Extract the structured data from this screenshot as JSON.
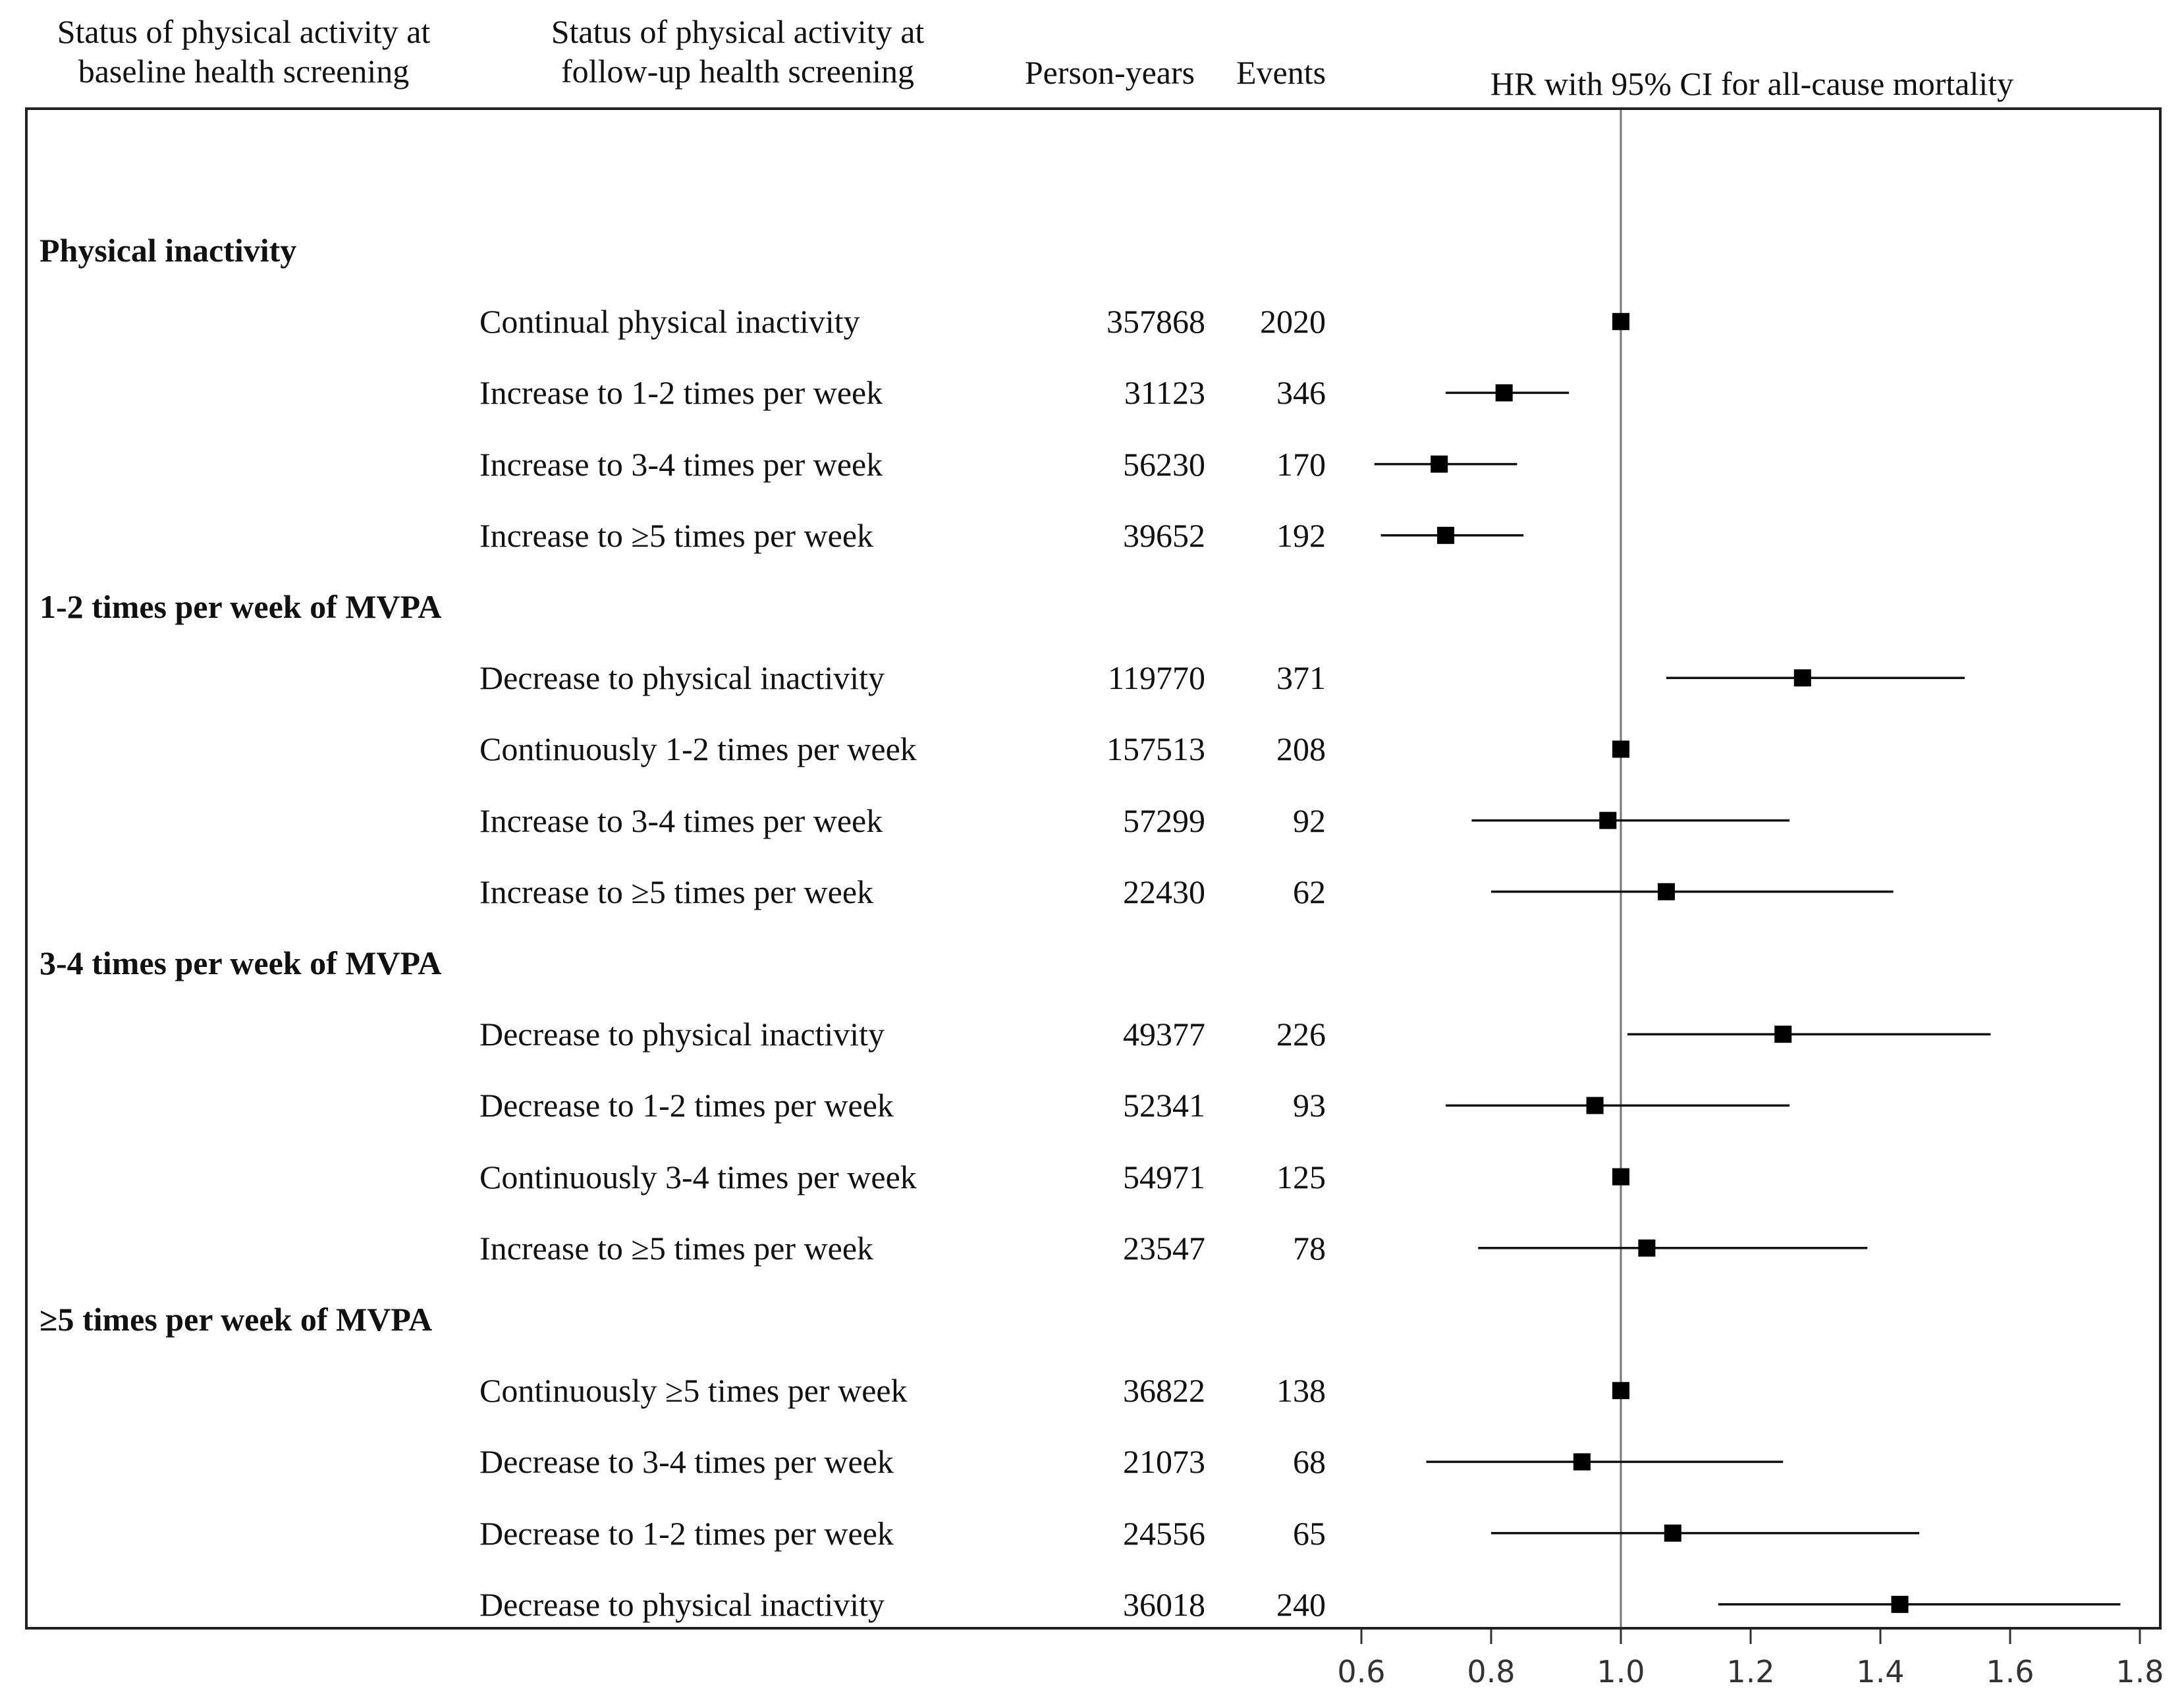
{
  "headers": {
    "baseline_line1": "Status of physical activity at",
    "baseline_line2": "baseline health screening",
    "followup_line1": "Status of physical activity at",
    "followup_line2": "follow-up health screening",
    "person_years": "Person-years",
    "events": "Events",
    "hr_title": "HR with 95% CI for all-cause mortality"
  },
  "chart_data": {
    "type": "forest",
    "title": "HR with 95% CI for all-cause mortality",
    "xlim": [
      0.6,
      1.8
    ],
    "xticks": [
      "0.6",
      "0.8",
      "1.0",
      "1.2",
      "1.4",
      "1.6",
      "1.8"
    ],
    "reference_value": 1.0,
    "marker_color": "#000000",
    "groups": [
      {
        "label": "Physical inactivity",
        "rows": [
          {
            "label": "Continual physical inactivity",
            "person_years": "357868",
            "events": "2020",
            "hr": 1.0,
            "lo": null,
            "hi": null
          },
          {
            "label": "Increase to 1-2 times per week",
            "person_years": "31123",
            "events": "346",
            "hr": 0.82,
            "lo": 0.73,
            "hi": 0.92
          },
          {
            "label": "Increase to 3-4 times per week",
            "person_years": "56230",
            "events": "170",
            "hr": 0.72,
            "lo": 0.62,
            "hi": 0.84
          },
          {
            "label": "Increase to ≥5 times per week",
            "person_years": "39652",
            "events": "192",
            "hr": 0.73,
            "lo": 0.63,
            "hi": 0.85
          }
        ]
      },
      {
        "label": "1-2 times per week of MVPA",
        "rows": [
          {
            "label": "Decrease to physical inactivity",
            "person_years": "119770",
            "events": "371",
            "hr": 1.28,
            "lo": 1.07,
            "hi": 1.53
          },
          {
            "label": "Continuously 1-2 times per week",
            "person_years": "157513",
            "events": "208",
            "hr": 1.0,
            "lo": null,
            "hi": null
          },
          {
            "label": "Increase to 3-4 times per week",
            "person_years": "57299",
            "events": "92",
            "hr": 0.98,
            "lo": 0.77,
            "hi": 1.26
          },
          {
            "label": "Increase to ≥5 times per week",
            "person_years": "22430",
            "events": "62",
            "hr": 1.07,
            "lo": 0.8,
            "hi": 1.42
          }
        ]
      },
      {
        "label": "3-4 times per week of MVPA",
        "rows": [
          {
            "label": "Decrease to physical inactivity",
            "person_years": "49377",
            "events": "226",
            "hr": 1.25,
            "lo": 1.01,
            "hi": 1.57
          },
          {
            "label": "Decrease to 1-2 times per week",
            "person_years": "52341",
            "events": "93",
            "hr": 0.96,
            "lo": 0.73,
            "hi": 1.26
          },
          {
            "label": "Continuously 3-4 times per week",
            "person_years": "54971",
            "events": "125",
            "hr": 1.0,
            "lo": null,
            "hi": null
          },
          {
            "label": "Increase to ≥5 times per week",
            "person_years": "23547",
            "events": "78",
            "hr": 1.04,
            "lo": 0.78,
            "hi": 1.38
          }
        ]
      },
      {
        "label": "≥5 times per week of MVPA",
        "rows": [
          {
            "label": "Continuously ≥5 times per week",
            "person_years": "36822",
            "events": "138",
            "hr": 1.0,
            "lo": null,
            "hi": null
          },
          {
            "label": "Decrease to 3-4 times per week",
            "person_years": "21073",
            "events": "68",
            "hr": 0.94,
            "lo": 0.7,
            "hi": 1.25
          },
          {
            "label": "Decrease to 1-2 times per week",
            "person_years": "24556",
            "events": "65",
            "hr": 1.08,
            "lo": 0.8,
            "hi": 1.46
          },
          {
            "label": "Decrease to physical inactivity",
            "person_years": "36018",
            "events": "240",
            "hr": 1.43,
            "lo": 1.15,
            "hi": 1.77
          }
        ]
      }
    ]
  }
}
